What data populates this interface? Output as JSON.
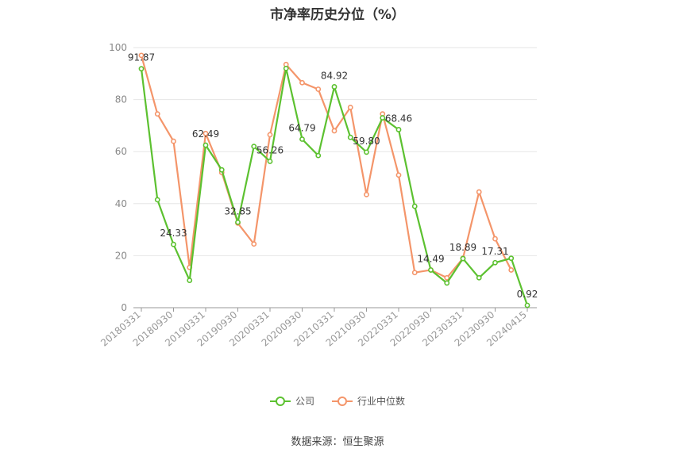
{
  "chart_data": {
    "type": "line",
    "title": "市净率历史分位（%）",
    "xlabel": "",
    "ylabel": "",
    "ylim": [
      0,
      100
    ],
    "yticks": [
      0,
      20,
      40,
      60,
      80,
      100
    ],
    "grid": true,
    "legend_position": "bottom",
    "x": [
      "20180331",
      "20180630",
      "20180930",
      "20181231",
      "20190331",
      "20190630",
      "20190930",
      "20191231",
      "20200331",
      "20200630",
      "20200930",
      "20201231",
      "20210331",
      "20210630",
      "20210930",
      "20211231",
      "20220331",
      "20220630",
      "20220930",
      "20221231",
      "20230331",
      "20230630",
      "20230930",
      "20231231",
      "20240415"
    ],
    "x_tick_labels": [
      "20180331",
      "20180930",
      "20190331",
      "20190930",
      "20200331",
      "20200930",
      "20210331",
      "20210930",
      "20220331",
      "20220930",
      "20230331",
      "20230930",
      "20240415"
    ],
    "series": [
      {
        "name": "公司",
        "color": "#5cc130",
        "values": [
          91.87,
          41.5,
          24.33,
          10.5,
          62.49,
          53.0,
          32.85,
          62.0,
          56.26,
          92.0,
          64.79,
          58.5,
          84.92,
          65.5,
          59.8,
          73.0,
          68.46,
          39.0,
          14.49,
          9.5,
          18.89,
          11.5,
          17.31,
          19.0,
          0.92
        ]
      },
      {
        "name": "行业中位数",
        "color": "#f4956a",
        "values": [
          97.0,
          74.5,
          64.0,
          15.5,
          67.0,
          52.0,
          32.5,
          24.5,
          66.5,
          93.5,
          86.5,
          84.0,
          68.0,
          77.0,
          43.5,
          74.5,
          51.0,
          13.5,
          14.5,
          11.5,
          19.0,
          44.5,
          26.5,
          14.5,
          null
        ]
      }
    ],
    "data_labels": [
      {
        "index": 0,
        "text": "91.87"
      },
      {
        "index": 2,
        "text": "24.33"
      },
      {
        "index": 4,
        "text": "62.49"
      },
      {
        "index": 6,
        "text": "32.85"
      },
      {
        "index": 8,
        "text": "56.26"
      },
      {
        "index": 10,
        "text": "64.79"
      },
      {
        "index": 12,
        "text": "84.92"
      },
      {
        "index": 14,
        "text": "59.80"
      },
      {
        "index": 16,
        "text": "68.46"
      },
      {
        "index": 18,
        "text": "14.49"
      },
      {
        "index": 20,
        "text": "18.89"
      },
      {
        "index": 22,
        "text": "17.31"
      },
      {
        "index": 24,
        "text": "0.92"
      }
    ],
    "source": "数据来源：恒生聚源"
  }
}
